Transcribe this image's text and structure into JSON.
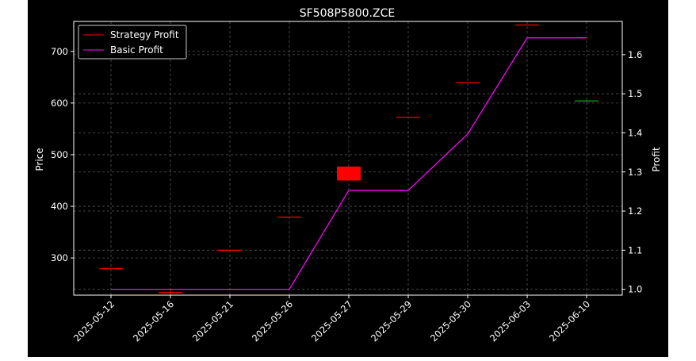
{
  "chart_data": {
    "type": "candlestick+line",
    "title": "SF508P5800.ZCE",
    "xlabel": "",
    "ylabel_left": "Price",
    "ylabel_right": "Profit",
    "categories": [
      "2025-05-12",
      "2025-05-16",
      "2025-05-21",
      "2025-05-26",
      "2025-05-27",
      "2025-05-29",
      "2025-05-30",
      "2025-06-03",
      "2025-06-10"
    ],
    "ylim_left": [
      228,
      758
    ],
    "yticks_left": [
      300,
      400,
      500,
      600,
      700
    ],
    "ylim_right": [
      0.985,
      1.685
    ],
    "yticks_right": [
      1.0,
      1.1,
      1.2,
      1.3,
      1.4,
      1.5,
      1.6
    ],
    "grid": true,
    "legend_position": "upper-left",
    "candles": [
      {
        "date": "2025-05-12",
        "open": 280,
        "close": 280,
        "high": 280,
        "low": 280,
        "color": "#ff0000"
      },
      {
        "date": "2025-05-16",
        "open": 232,
        "close": 234,
        "high": 238,
        "low": 230,
        "color": "#ff0000"
      },
      {
        "date": "2025-05-21",
        "open": 314,
        "close": 316,
        "high": 316,
        "low": 314,
        "color": "#ff0000"
      },
      {
        "date": "2025-05-26",
        "open": 380,
        "close": 380,
        "high": 380,
        "low": 380,
        "color": "#ff0000"
      },
      {
        "date": "2025-05-27",
        "open": 477,
        "close": 450,
        "high": 477,
        "low": 450,
        "color": "#ff0000"
      },
      {
        "date": "2025-05-29",
        "open": 573,
        "close": 573,
        "high": 573,
        "low": 573,
        "color": "#ff0000"
      },
      {
        "date": "2025-05-30",
        "open": 640,
        "close": 640,
        "high": 640,
        "low": 640,
        "color": "#ff0000"
      },
      {
        "date": "2025-06-03",
        "open": 752,
        "close": 752,
        "high": 752,
        "low": 752,
        "color": "#ff0000"
      },
      {
        "date": "2025-06-10",
        "open": 603,
        "close": 605,
        "high": 606,
        "low": 602,
        "color": "#00aa00"
      }
    ],
    "series": [
      {
        "name": "Strategy Profit",
        "color": "#ff0000"
      },
      {
        "name": "Basic Profit",
        "color": "#ff00ff",
        "axis": "right",
        "values": [
          1.0,
          1.0,
          1.0,
          1.0,
          1.253,
          1.253,
          1.397,
          1.643,
          1.643
        ]
      }
    ]
  }
}
